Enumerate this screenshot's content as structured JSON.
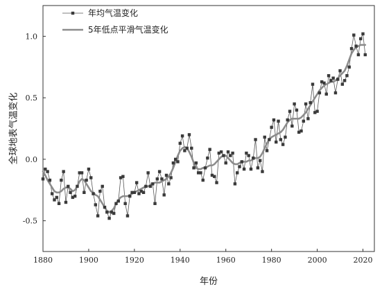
{
  "chart_data": {
    "type": "line",
    "title": "",
    "xlabel": "年份",
    "ylabel": "全球地表气温变化",
    "xlim": [
      1880,
      2025
    ],
    "ylim": [
      -0.75,
      1.25
    ],
    "xticks": [
      1880,
      1900,
      1920,
      1940,
      1960,
      1980,
      2000,
      2020
    ],
    "xtick_labels": [
      "1880",
      "1900",
      "1920",
      "1940",
      "1960",
      "1980",
      "2000",
      "2020"
    ],
    "yticks": [
      -0.5,
      0.0,
      0.5,
      1.0
    ],
    "ytick_labels": [
      "-0.5",
      "0.0",
      "0.5",
      "1.0"
    ],
    "grid": false,
    "legend_position": "top-left",
    "x": [
      1880,
      1881,
      1882,
      1883,
      1884,
      1885,
      1886,
      1887,
      1888,
      1889,
      1890,
      1891,
      1892,
      1893,
      1894,
      1895,
      1896,
      1897,
      1898,
      1899,
      1900,
      1901,
      1902,
      1903,
      1904,
      1905,
      1906,
      1907,
      1908,
      1909,
      1910,
      1911,
      1912,
      1913,
      1914,
      1915,
      1916,
      1917,
      1918,
      1919,
      1920,
      1921,
      1922,
      1923,
      1924,
      1925,
      1926,
      1927,
      1928,
      1929,
      1930,
      1931,
      1932,
      1933,
      1934,
      1935,
      1936,
      1937,
      1938,
      1939,
      1940,
      1941,
      1942,
      1943,
      1944,
      1945,
      1946,
      1947,
      1948,
      1949,
      1950,
      1951,
      1952,
      1953,
      1954,
      1955,
      1956,
      1957,
      1958,
      1959,
      1960,
      1961,
      1962,
      1963,
      1964,
      1965,
      1966,
      1967,
      1968,
      1969,
      1970,
      1971,
      1972,
      1973,
      1974,
      1975,
      1976,
      1977,
      1978,
      1979,
      1980,
      1981,
      1982,
      1983,
      1984,
      1985,
      1986,
      1987,
      1988,
      1989,
      1990,
      1991,
      1992,
      1993,
      1994,
      1995,
      1996,
      1997,
      1998,
      1999,
      2000,
      2001,
      2002,
      2003,
      2004,
      2005,
      2006,
      2007,
      2008,
      2009,
      2010,
      2011,
      2012,
      2013,
      2014,
      2015,
      2016,
      2017,
      2018,
      2019,
      2020,
      2021
    ],
    "series": [
      {
        "name": "年均气温变化",
        "color": "#555555",
        "marker": "square",
        "values": [
          -0.16,
          -0.08,
          -0.1,
          -0.17,
          -0.28,
          -0.33,
          -0.31,
          -0.36,
          -0.17,
          -0.1,
          -0.35,
          -0.22,
          -0.27,
          -0.31,
          -0.3,
          -0.22,
          -0.11,
          -0.11,
          -0.27,
          -0.17,
          -0.08,
          -0.15,
          -0.28,
          -0.37,
          -0.46,
          -0.26,
          -0.22,
          -0.39,
          -0.43,
          -0.48,
          -0.43,
          -0.44,
          -0.36,
          -0.34,
          -0.15,
          -0.14,
          -0.36,
          -0.46,
          -0.3,
          -0.27,
          -0.27,
          -0.19,
          -0.28,
          -0.26,
          -0.27,
          -0.22,
          -0.11,
          -0.22,
          -0.2,
          -0.36,
          -0.16,
          -0.1,
          -0.16,
          -0.29,
          -0.13,
          -0.2,
          -0.15,
          -0.03,
          -0.0,
          -0.02,
          0.13,
          0.19,
          0.07,
          0.09,
          0.2,
          0.09,
          -0.07,
          -0.03,
          -0.11,
          -0.11,
          -0.17,
          -0.07,
          0.01,
          0.08,
          -0.13,
          -0.14,
          -0.19,
          0.05,
          0.06,
          0.03,
          -0.03,
          0.06,
          0.03,
          0.05,
          -0.2,
          -0.11,
          -0.06,
          -0.02,
          -0.08,
          0.05,
          0.03,
          -0.08,
          0.01,
          0.16,
          -0.07,
          -0.01,
          -0.1,
          0.18,
          0.07,
          0.16,
          0.26,
          0.32,
          0.14,
          0.31,
          0.16,
          0.12,
          0.18,
          0.32,
          0.39,
          0.27,
          0.45,
          0.4,
          0.22,
          0.23,
          0.31,
          0.45,
          0.33,
          0.46,
          0.61,
          0.38,
          0.39,
          0.54,
          0.63,
          0.62,
          0.53,
          0.68,
          0.64,
          0.66,
          0.54,
          0.65,
          0.72,
          0.61,
          0.64,
          0.68,
          0.75,
          0.9,
          1.01,
          0.92,
          0.85,
          0.98,
          1.02,
          0.85
        ]
      },
      {
        "name": "5年低点平滑气温变化",
        "color": "#8c8c8c",
        "values": [
          -0.1,
          -0.13,
          -0.17,
          -0.2,
          -0.23,
          -0.26,
          -0.27,
          -0.27,
          -0.26,
          -0.24,
          -0.23,
          -0.23,
          -0.24,
          -0.26,
          -0.25,
          -0.22,
          -0.18,
          -0.16,
          -0.17,
          -0.2,
          -0.23,
          -0.26,
          -0.27,
          -0.29,
          -0.3,
          -0.33,
          -0.36,
          -0.39,
          -0.42,
          -0.43,
          -0.42,
          -0.4,
          -0.36,
          -0.33,
          -0.31,
          -0.3,
          -0.3,
          -0.3,
          -0.29,
          -0.28,
          -0.27,
          -0.26,
          -0.25,
          -0.24,
          -0.23,
          -0.22,
          -0.22,
          -0.21,
          -0.2,
          -0.19,
          -0.19,
          -0.19,
          -0.18,
          -0.17,
          -0.16,
          -0.14,
          -0.11,
          -0.07,
          -0.02,
          0.03,
          0.07,
          0.09,
          0.1,
          0.09,
          0.06,
          0.02,
          -0.03,
          -0.07,
          -0.08,
          -0.08,
          -0.07,
          -0.07,
          -0.06,
          -0.05,
          -0.05,
          -0.04,
          -0.02,
          0.0,
          0.02,
          0.03,
          0.03,
          0.01,
          -0.01,
          -0.03,
          -0.04,
          -0.04,
          -0.03,
          -0.02,
          -0.02,
          -0.02,
          -0.01,
          -0.01,
          0.0,
          0.01,
          0.01,
          0.02,
          0.05,
          0.09,
          0.13,
          0.16,
          0.18,
          0.19,
          0.2,
          0.21,
          0.22,
          0.24,
          0.27,
          0.3,
          0.32,
          0.33,
          0.33,
          0.33,
          0.33,
          0.34,
          0.36,
          0.38,
          0.41,
          0.44,
          0.47,
          0.5,
          0.53,
          0.56,
          0.58,
          0.6,
          0.61,
          0.62,
          0.63,
          0.63,
          0.64,
          0.66,
          0.68,
          0.7,
          0.72,
          0.76,
          0.81,
          0.86,
          0.89,
          0.91,
          0.92,
          0.93,
          0.93,
          0.93
        ]
      }
    ]
  }
}
